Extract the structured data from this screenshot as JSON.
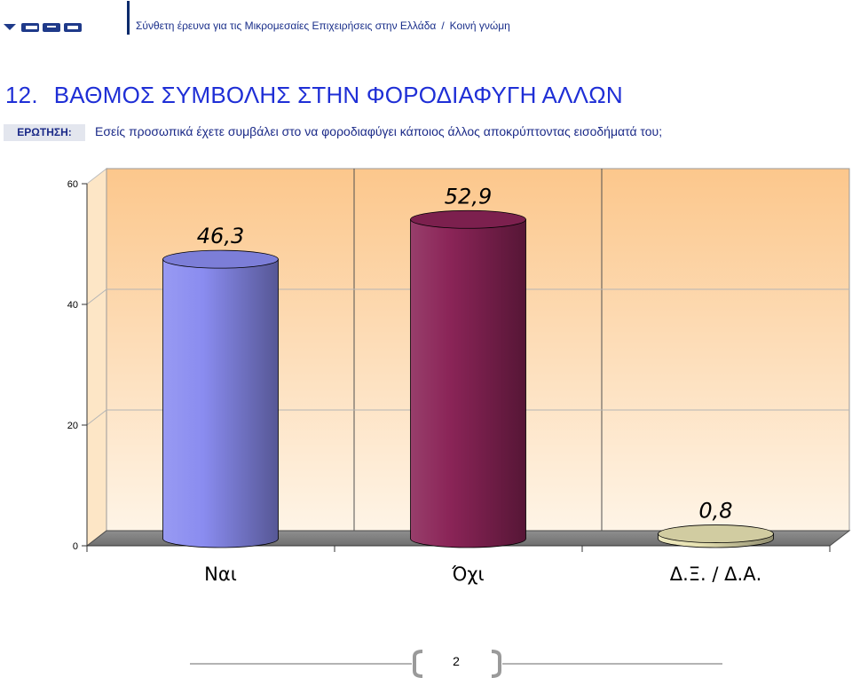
{
  "header": {
    "logo_text": "GPO",
    "survey_title": "Σύνθετη έρευνα για τις  Μικρομεσαίες Επιχειρήσεις στην Ελλάδα",
    "separator": "/",
    "section": "Κοινή γνώμη"
  },
  "question": {
    "number": "12.",
    "title": "ΒΑΘΜΟΣ ΣΥΜΒΟΛΗΣ ΣΤΗΝ ΦΟΡΟΔΙΑΦΥΓΗ ΑΛΛΩΝ",
    "label": "ΕΡΩΤΗΣΗ:",
    "text": "Εσείς προσωπικά έχετε συμβάλει στο να φοροδιαφύγει κάποιος άλλος αποκρύπτοντας εισοδήματά του;"
  },
  "chart_data": {
    "type": "bar",
    "style": "3d-cylinder",
    "categories": [
      "Ναι",
      "Όχι",
      "Δ.Ξ. / Δ.Α."
    ],
    "values": [
      46.3,
      52.9,
      0.8
    ],
    "data_labels": [
      "46,3",
      "52,9",
      "0,8"
    ],
    "ylim": [
      0,
      60
    ],
    "yticks": [
      0,
      20,
      40,
      60
    ],
    "grid": true,
    "legend": "none",
    "colors": [
      "#8a8cf0",
      "#8a2457",
      "#e8e3b3"
    ],
    "wall_color": "#fdd7a5"
  },
  "footer": {
    "page_number": "2"
  }
}
